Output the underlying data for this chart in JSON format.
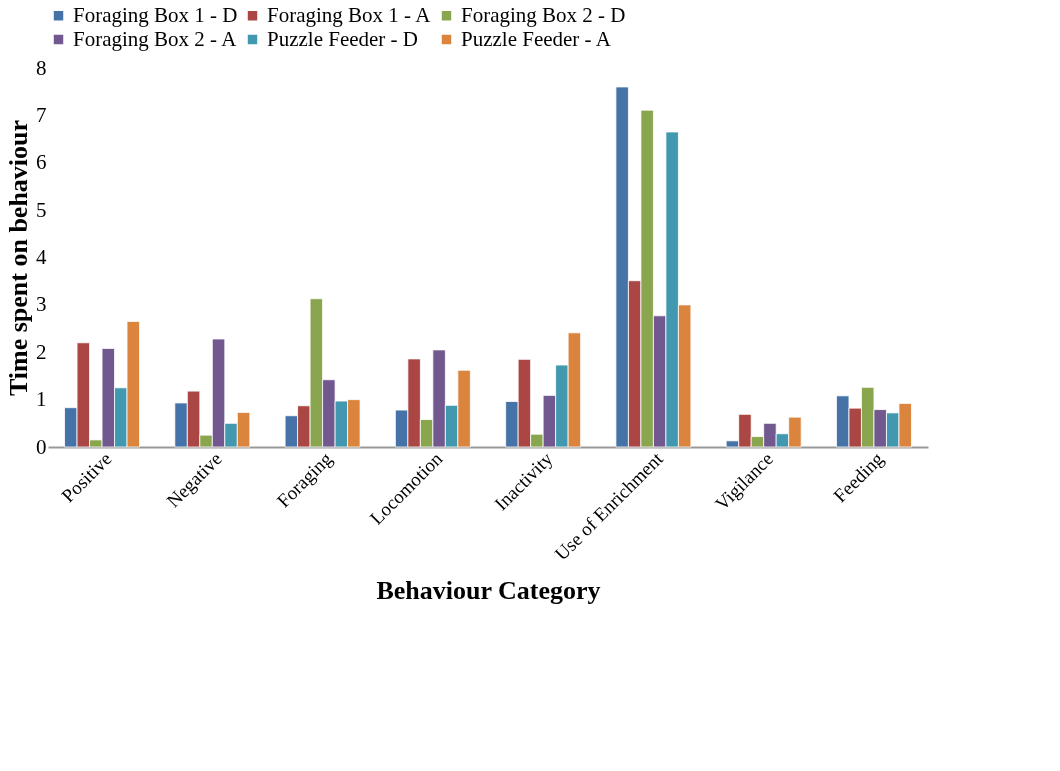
{
  "chart_data": {
    "type": "bar",
    "xlabel": "Behaviour Category",
    "ylabel": "Time  spent on behaviour",
    "categories": [
      "Positive",
      "Negative",
      "Foraging",
      "Locomotion",
      "Inactivity",
      "Use of Enrichment",
      "Vigilance",
      "Feeding"
    ],
    "series": [
      {
        "name": "Foraging Box 1 - D",
        "color": "#4572a7",
        "values": [
          0.83,
          0.93,
          0.66,
          0.78,
          0.96,
          7.6,
          0.13,
          1.08
        ]
      },
      {
        "name": "Foraging Box 1 - A",
        "color": "#aa4643",
        "values": [
          2.2,
          1.18,
          0.87,
          1.86,
          1.85,
          3.51,
          0.69,
          0.82
        ]
      },
      {
        "name": "Foraging Box 2 - D",
        "color": "#89a54e",
        "values": [
          0.15,
          0.25,
          3.13,
          0.58,
          0.27,
          7.11,
          0.22,
          1.26
        ]
      },
      {
        "name": "Foraging Box 2 - A",
        "color": "#71588f",
        "values": [
          2.08,
          2.28,
          1.42,
          2.05,
          1.09,
          2.77,
          0.5,
          0.79
        ]
      },
      {
        "name": "Puzzle Feeder - D",
        "color": "#4198af",
        "values": [
          1.25,
          0.5,
          0.97,
          0.88,
          1.73,
          6.65,
          0.28,
          0.72
        ]
      },
      {
        "name": "Puzzle Feeder - A",
        "color": "#db843d",
        "values": [
          2.65,
          0.73,
          1.0,
          1.62,
          2.41,
          3.0,
          0.63,
          0.92
        ]
      }
    ],
    "ylim": [
      0,
      8
    ],
    "yticks": [
      0,
      1,
      2,
      3,
      4,
      5,
      6,
      7,
      8
    ],
    "grid": false,
    "legend": "top"
  }
}
